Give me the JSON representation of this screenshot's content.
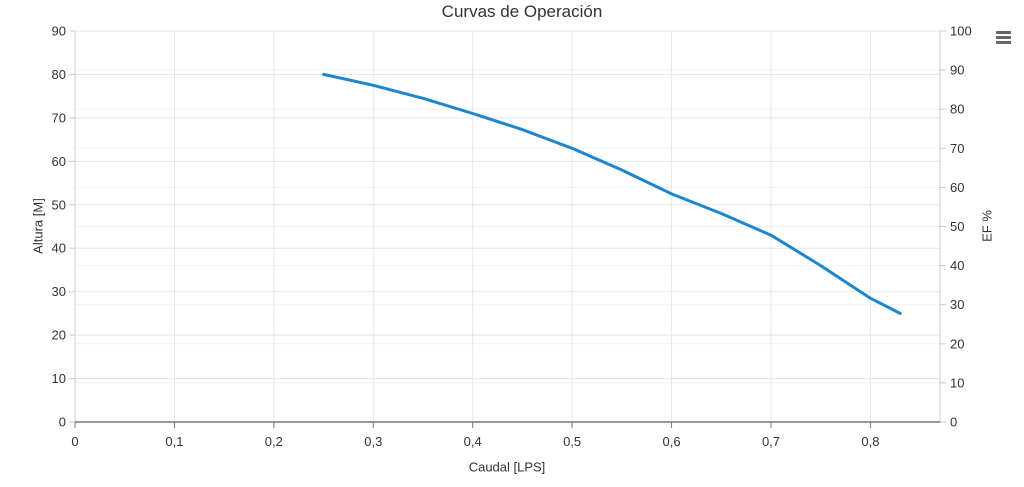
{
  "header": {
    "title": "Curvas de Operación"
  },
  "menu": {
    "icon": "hamburger-menu-icon",
    "color": "#666666"
  },
  "style": {
    "line_color": "#1d87cd",
    "text_color": "#333333",
    "grid_major_color": "#e7e7e7",
    "grid_minor_color": "#f2f2f2",
    "axis_line_color": "#cccccc",
    "x_axis_line_color": "#777777"
  },
  "chart_data": {
    "type": "line",
    "title": "Curvas de Operación",
    "xlabel": "Caudal [LPS]",
    "ylabel_left": "Altura [M]",
    "ylabel_right": "EF %",
    "xlim": [
      0,
      0.87
    ],
    "ylim_left": [
      0,
      90
    ],
    "ylim_right": [
      0,
      100
    ],
    "x_ticks": [
      0,
      0.1,
      0.2,
      0.3,
      0.4,
      0.5,
      0.6,
      0.7,
      0.8
    ],
    "x_tick_labels": [
      "0",
      "0,1",
      "0,2",
      "0,3",
      "0,4",
      "0,5",
      "0,6",
      "0,7",
      "0,8"
    ],
    "y_ticks_left": [
      0,
      10,
      20,
      30,
      40,
      50,
      60,
      70,
      80,
      90
    ],
    "y_tick_labels_left": [
      "0",
      "10",
      "20",
      "30",
      "40",
      "50",
      "60",
      "70",
      "80",
      "90"
    ],
    "y_ticks_right": [
      0,
      10,
      20,
      30,
      40,
      50,
      60,
      70,
      80,
      90,
      100
    ],
    "y_tick_labels_right": [
      "0",
      "10",
      "20",
      "30",
      "40",
      "50",
      "60",
      "70",
      "80",
      "90",
      "100"
    ],
    "grid": true,
    "legend": "none",
    "series": [
      {
        "name": "Altura [M]",
        "axis": "left",
        "color": "#1d87cd",
        "x": [
          0.25,
          0.3,
          0.35,
          0.4,
          0.45,
          0.5,
          0.55,
          0.6,
          0.65,
          0.7,
          0.75,
          0.8,
          0.83
        ],
        "y": [
          80,
          77.5,
          74.5,
          71,
          67.3,
          63,
          58,
          52.5,
          48,
          43,
          36,
          28.5,
          25
        ]
      }
    ]
  }
}
